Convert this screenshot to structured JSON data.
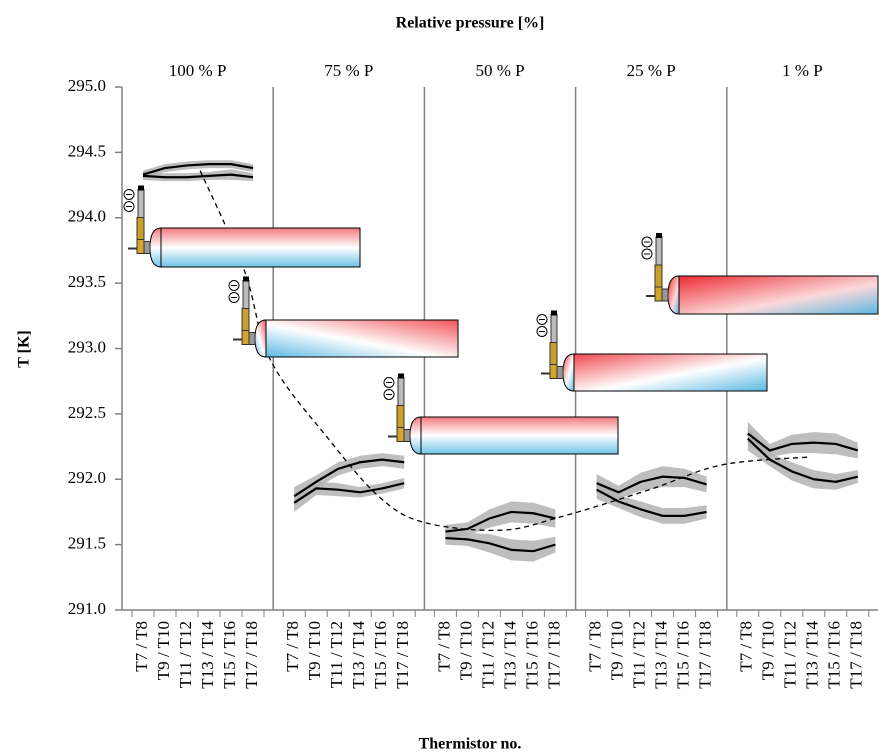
{
  "chart_data": {
    "type": "line",
    "title": "Relative pressure [%]",
    "x_label": "Thermistor no.",
    "y_label": "T [K]",
    "categories": [
      "T7 / T8",
      "T9 / T10",
      "T11 / T12",
      "T13 / T14",
      "T15 / T16",
      "T17 / T18"
    ],
    "ylim": [
      291,
      295
    ],
    "yticks": [
      {
        "value": 291,
        "label": "291.0"
      },
      {
        "value": 291.5,
        "label": "291.5"
      },
      {
        "value": 292,
        "label": "292.0"
      },
      {
        "value": 292.5,
        "label": "292.5"
      },
      {
        "value": 293,
        "label": "293.0"
      },
      {
        "value": 293.5,
        "label": "293.5"
      },
      {
        "value": 294,
        "label": "294.0"
      },
      {
        "value": 294.5,
        "label": "294.5"
      },
      {
        "value": 295,
        "label": "295.0"
      }
    ],
    "line_color": "#000000",
    "band_color": "#b3b3b3",
    "panels": [
      {
        "label": "100 % P",
        "lines": [
          {
            "values": [
              294.33,
              294.38,
              294.4,
              294.41,
              294.41,
              294.38
            ],
            "error": [
              0.03,
              0.03,
              0.03,
              0.03,
              0.03,
              0.03
            ]
          },
          {
            "values": [
              294.32,
              294.31,
              294.31,
              294.32,
              294.33,
              294.31
            ],
            "error": [
              0.03,
              0.03,
              0.03,
              0.03,
              0.04,
              0.03
            ]
          }
        ]
      },
      {
        "label": "75 % P",
        "lines": [
          {
            "values": [
              291.87,
              291.98,
              292.08,
              292.13,
              292.15,
              292.13
            ],
            "error": [
              0.07,
              0.05,
              0.05,
              0.05,
              0.05,
              0.05
            ]
          },
          {
            "values": [
              291.82,
              291.93,
              291.92,
              291.9,
              291.93,
              291.97
            ],
            "error": [
              0.07,
              0.05,
              0.05,
              0.04,
              0.04,
              0.04
            ]
          }
        ]
      },
      {
        "label": "50 % P",
        "lines": [
          {
            "values": [
              291.6,
              291.62,
              291.7,
              291.75,
              291.74,
              291.7
            ],
            "error": [
              0.05,
              0.05,
              0.07,
              0.08,
              0.08,
              0.07
            ]
          },
          {
            "values": [
              291.55,
              291.54,
              291.51,
              291.46,
              291.45,
              291.5
            ],
            "error": [
              0.05,
              0.05,
              0.07,
              0.08,
              0.08,
              0.06
            ]
          }
        ]
      },
      {
        "label": "25 % P",
        "lines": [
          {
            "values": [
              291.97,
              291.9,
              291.98,
              292.02,
              292.01,
              291.96
            ],
            "error": [
              0.07,
              0.05,
              0.07,
              0.08,
              0.07,
              0.06
            ]
          },
          {
            "values": [
              291.92,
              291.83,
              291.77,
              291.72,
              291.72,
              291.75
            ],
            "error": [
              0.07,
              0.05,
              0.06,
              0.06,
              0.06,
              0.05
            ]
          }
        ]
      },
      {
        "label": "1 % P",
        "lines": [
          {
            "values": [
              292.35,
              292.22,
              292.27,
              292.28,
              292.27,
              292.22
            ],
            "error": [
              0.09,
              0.05,
              0.07,
              0.08,
              0.08,
              0.06
            ]
          },
          {
            "values": [
              292.31,
              292.15,
              292.06,
              292.0,
              291.98,
              292.02
            ],
            "error": [
              0.09,
              0.05,
              0.07,
              0.07,
              0.06,
              0.05
            ]
          }
        ]
      }
    ],
    "trend": {
      "x": [
        2.6,
        4.6,
        5.8,
        7.6,
        9.9,
        11.9,
        14.5,
        17.2,
        20.4,
        23.7,
        26.8
      ],
      "values": [
        294.36,
        293.6,
        292.91,
        292.3,
        291.86,
        291.67,
        291.61,
        291.71,
        291.92,
        292.11,
        292.17
      ]
    }
  }
}
